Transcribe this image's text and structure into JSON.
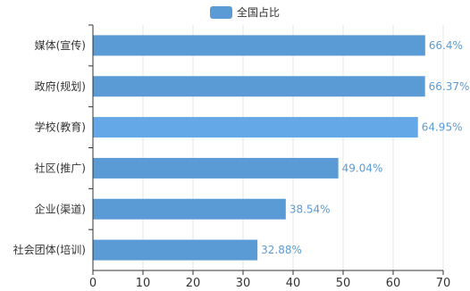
{
  "chart_data": {
    "type": "bar",
    "orientation": "horizontal",
    "categories": [
      "社会团体(培训)",
      "企业(渠道)",
      "社区(推广)",
      "学校(教育)",
      "政府(规划)",
      "媒体(宣传)"
    ],
    "series": [
      {
        "name": "全国占比",
        "values": [
          32.88,
          38.54,
          49.04,
          64.95,
          66.37,
          66.4
        ],
        "labels": [
          "32.88%",
          "38.54%",
          "49.04%",
          "64.95%",
          "66.37%",
          "66.4%"
        ]
      }
    ],
    "xlim": [
      0,
      70
    ],
    "x_ticks": [
      "0",
      "10",
      "20",
      "30",
      "40",
      "50",
      "60",
      "70"
    ],
    "legend_position": "top-center",
    "grid": "vertical",
    "colors": {
      "bar": "#5b9bd5",
      "bar_highlight": "#64a8e8",
      "label": "#5b9bd5",
      "grid": "#e5e5e5",
      "axis": "#333333"
    },
    "highlighted_category": "学校(教育)"
  }
}
